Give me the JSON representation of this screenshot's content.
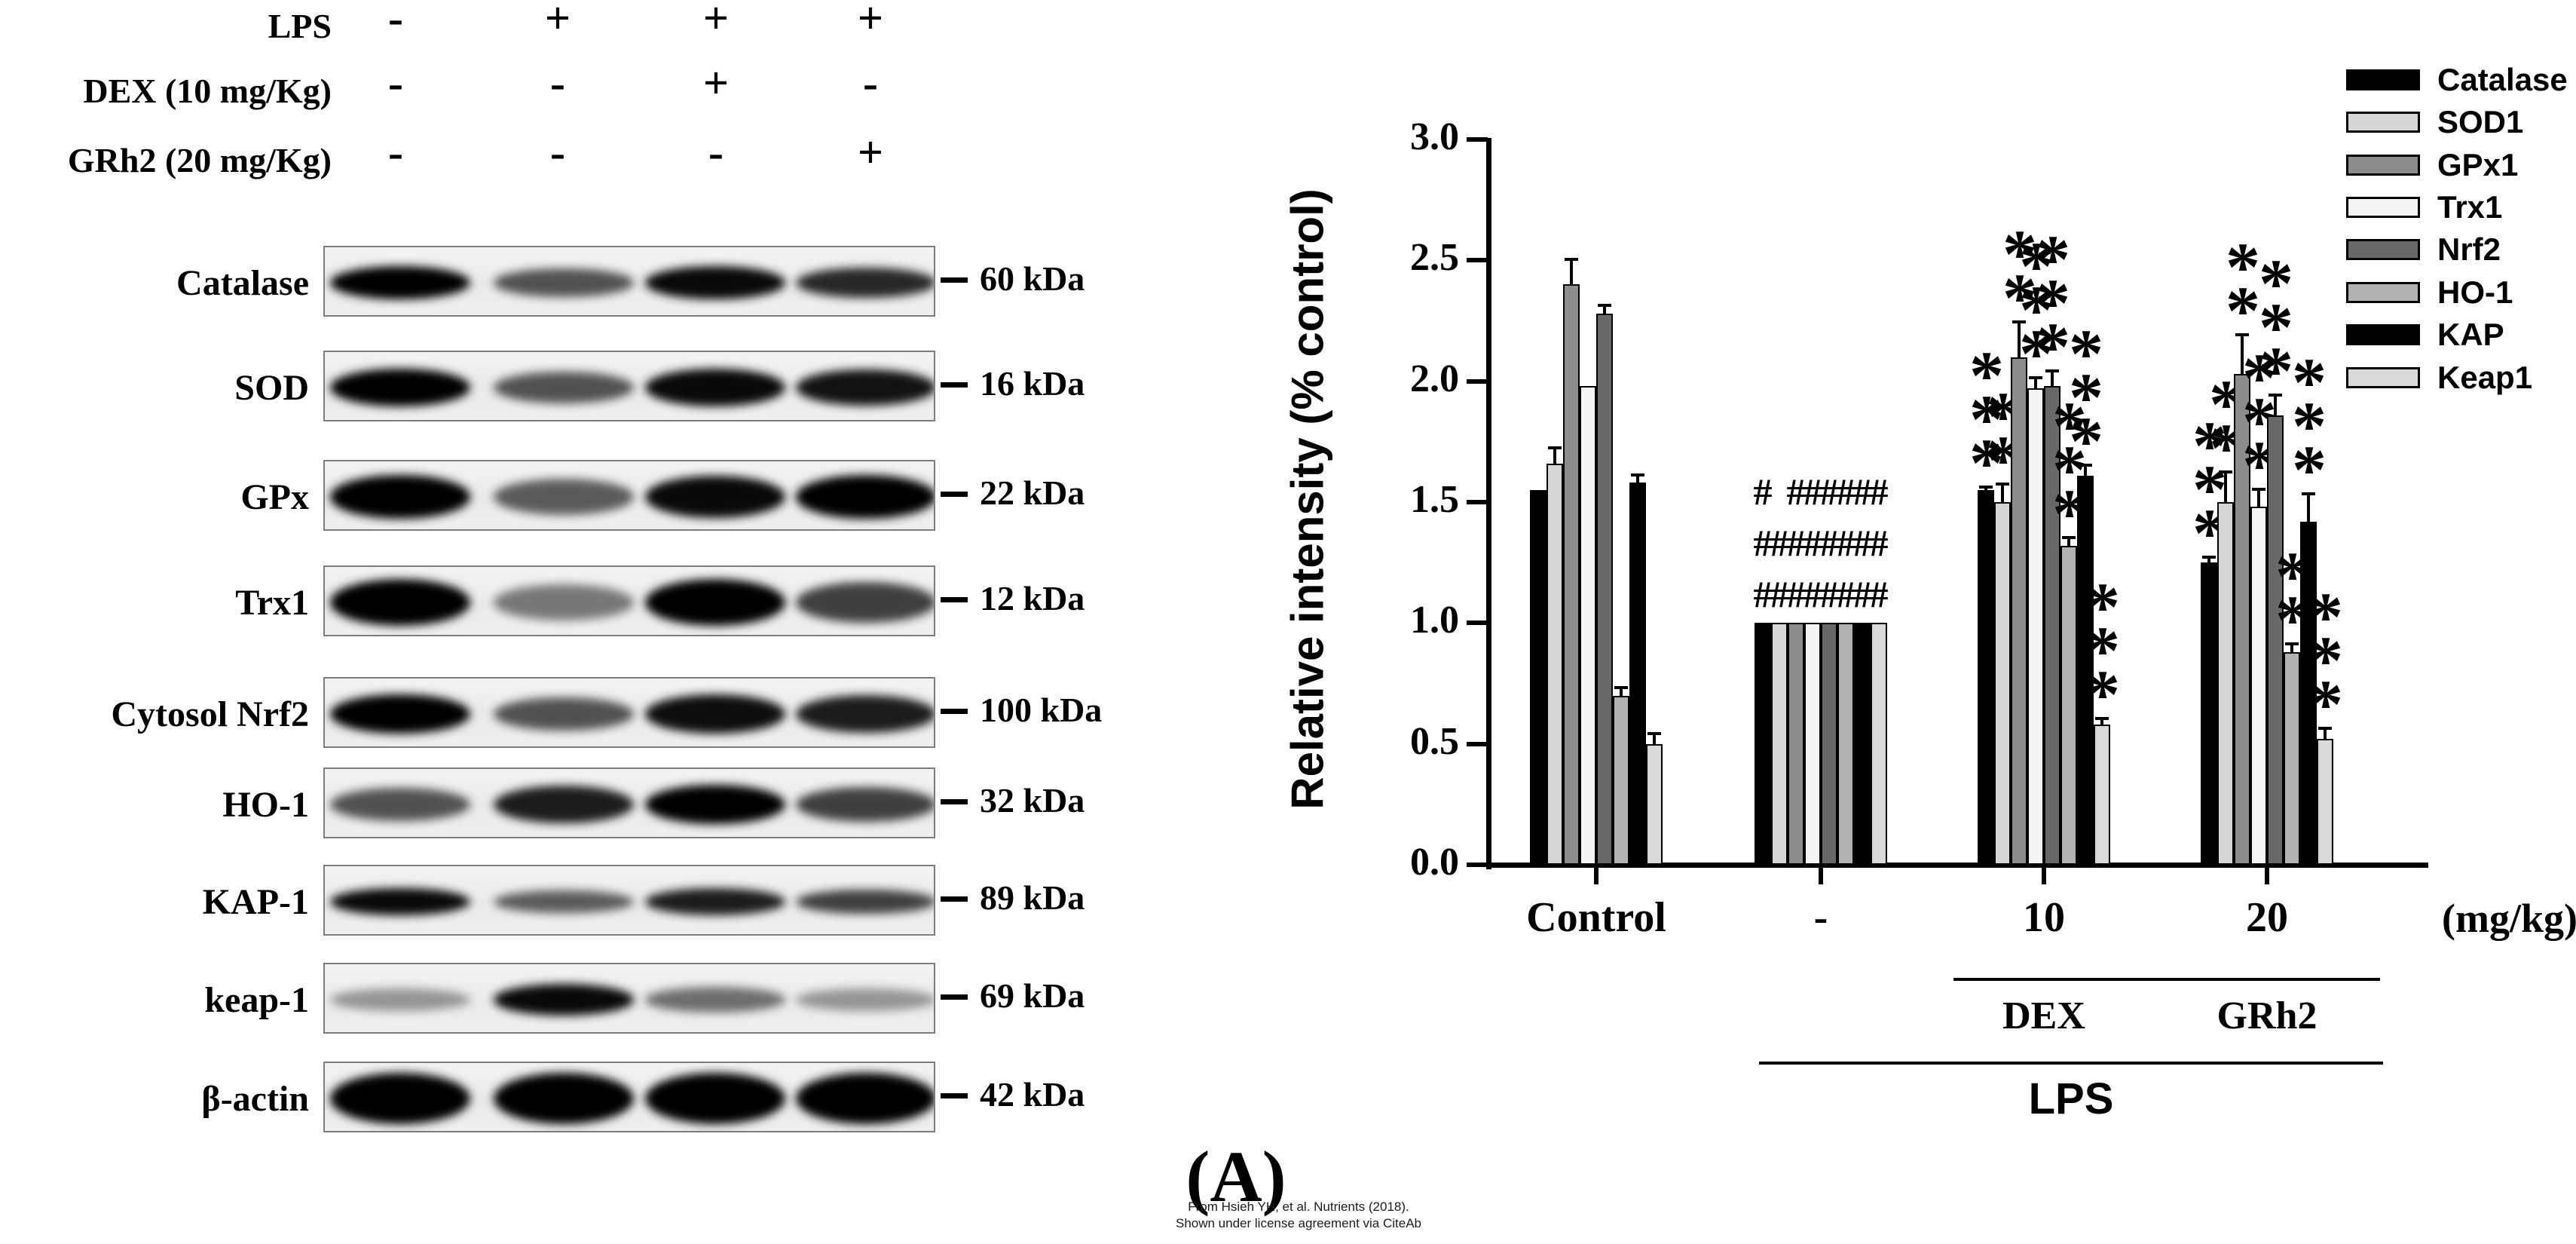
{
  "treatment_header": {
    "rows": [
      {
        "label": "LPS",
        "signs": [
          "-",
          "+",
          "+",
          "+"
        ]
      },
      {
        "label": "DEX (10 mg/Kg)",
        "signs": [
          "-",
          "-",
          "+",
          "-"
        ]
      },
      {
        "label": "GRh2 (20 mg/Kg)",
        "signs": [
          "-",
          "-",
          "-",
          "+"
        ]
      }
    ]
  },
  "blots": [
    {
      "label": "Catalase",
      "kda": "60 kDa",
      "band_intensities": [
        1.0,
        0.55,
        0.95,
        0.78
      ]
    },
    {
      "label": "SOD",
      "kda": "16 kDa",
      "band_intensities": [
        1.0,
        0.55,
        0.95,
        0.9
      ]
    },
    {
      "label": "GPx",
      "kda": "22 kDa",
      "band_intensities": [
        1.0,
        0.5,
        0.95,
        1.0
      ]
    },
    {
      "label": "Trx1",
      "kda": "12 kDa",
      "band_intensities": [
        1.0,
        0.35,
        1.0,
        0.65
      ]
    },
    {
      "label": "Cytosol Nrf2",
      "kda": "100 kDa",
      "band_intensities": [
        1.0,
        0.55,
        0.92,
        0.85
      ]
    },
    {
      "label": "HO-1",
      "kda": "32 kDa",
      "band_intensities": [
        0.55,
        0.85,
        1.0,
        0.65
      ]
    },
    {
      "label": "KAP-1",
      "kda": "89 kDa",
      "band_intensities": [
        0.95,
        0.5,
        0.85,
        0.65
      ]
    },
    {
      "label": "keap-1",
      "kda": "69 kDa",
      "band_intensities": [
        0.18,
        0.95,
        0.4,
        0.18
      ]
    },
    {
      "label": "β-actin",
      "kda": "42 kDa",
      "band_intensities": [
        1.0,
        1.0,
        1.0,
        1.0
      ]
    }
  ],
  "chart_data": {
    "type": "bar",
    "title": "",
    "ylabel": "Relative intensity (% control)",
    "ylim": [
      0.0,
      3.0
    ],
    "yticks": [
      "0.0",
      "0.5",
      "1.0",
      "1.5",
      "2.0",
      "2.5",
      "3.0"
    ],
    "grid": false,
    "legend_position": "top-right",
    "categories": [
      "Control",
      "-",
      "10",
      "20"
    ],
    "x_unit_label": "(mg/kg)",
    "sub_group_labels": {
      "dex": "DEX",
      "grh2": "GRh2",
      "lps": "LPS"
    },
    "series": [
      {
        "name": "Catalase",
        "color": "#000000",
        "values": [
          1.55,
          1.0,
          1.55,
          1.25
        ],
        "errors": [
          0,
          0,
          0.02,
          0.03
        ],
        "annotations": [
          "",
          "###",
          "***",
          "***"
        ]
      },
      {
        "name": "SOD1",
        "color": "#d6d6d6",
        "values": [
          1.66,
          1.0,
          1.5,
          1.5
        ],
        "errors": [
          0.07,
          0,
          0.08,
          0.13
        ],
        "annotations": [
          "",
          "##",
          "**",
          "**"
        ]
      },
      {
        "name": "GPx1",
        "color": "#8c8c8c",
        "values": [
          2.4,
          1.0,
          2.1,
          2.03
        ],
        "errors": [
          0.11,
          0,
          0.15,
          0.17
        ],
        "annotations": [
          "",
          "###",
          "**",
          "**"
        ]
      },
      {
        "name": "Trx1",
        "color": "#f4f4f4",
        "values": [
          1.98,
          1.0,
          1.97,
          1.48
        ],
        "errors": [
          0,
          0,
          0.05,
          0.08
        ],
        "annotations": [
          "",
          "###",
          "***",
          "***"
        ]
      },
      {
        "name": "Nrf2",
        "color": "#686868",
        "values": [
          2.28,
          1.0,
          1.98,
          1.86
        ],
        "errors": [
          0.04,
          0,
          0.07,
          0.09
        ],
        "annotations": [
          "",
          "###",
          "***",
          "***"
        ]
      },
      {
        "name": "HO-1",
        "color": "#b2b2b2",
        "values": [
          0.7,
          1.0,
          1.32,
          0.88
        ],
        "errors": [
          0.04,
          0,
          0.04,
          0.04
        ],
        "annotations": [
          "",
          "###",
          "***",
          "**"
        ]
      },
      {
        "name": "KAP",
        "color": "#000000",
        "values": [
          1.58,
          1.0,
          1.61,
          1.42
        ],
        "errors": [
          0.04,
          0,
          0.05,
          0.12
        ],
        "annotations": [
          "",
          "###",
          "***",
          "***"
        ]
      },
      {
        "name": "Keap1",
        "color": "#d9d9d9",
        "values": [
          0.5,
          1.0,
          0.58,
          0.52
        ],
        "errors": [
          0.05,
          0,
          0.03,
          0.05
        ],
        "annotations": [
          "",
          "###",
          "***",
          "***"
        ]
      }
    ]
  },
  "panel_label": "(A)",
  "attribution": {
    "line1": "From Hsieh YH, et al. Nutrients (2018).",
    "line2": "Shown under license agreement via CiteAb"
  }
}
